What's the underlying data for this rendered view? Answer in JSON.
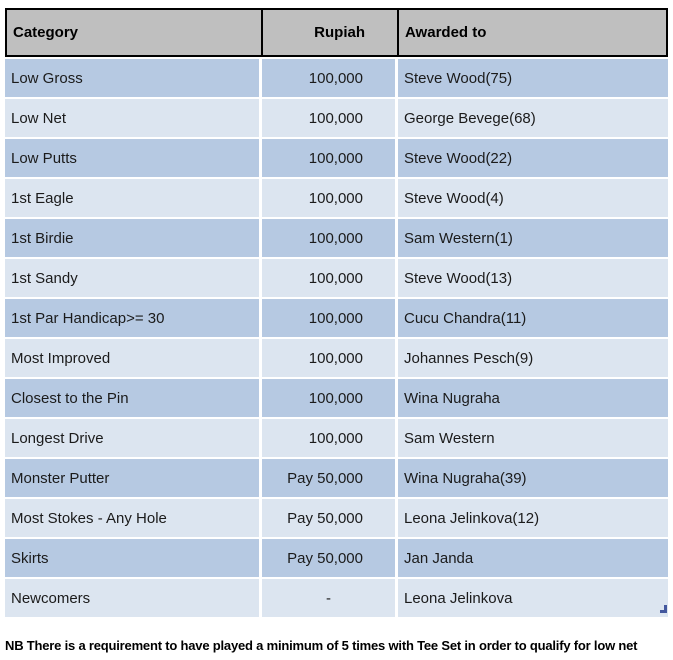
{
  "table": {
    "columns": {
      "category": "Category",
      "rupiah": "Rupiah",
      "awarded_to": "Awarded to"
    },
    "rows": [
      {
        "category": "Low Gross",
        "rupiah": "100,000",
        "awarded_to": "Steve Wood(75)"
      },
      {
        "category": "Low Net",
        "rupiah": "100,000",
        "awarded_to": "George Bevege(68)"
      },
      {
        "category": "Low Putts",
        "rupiah": "100,000",
        "awarded_to": "Steve Wood(22)"
      },
      {
        "category": "1st Eagle",
        "rupiah": "100,000",
        "awarded_to": "Steve Wood(4)"
      },
      {
        "category": "1st Birdie",
        "rupiah": "100,000",
        "awarded_to": "Sam Western(1)"
      },
      {
        "category": "1st Sandy",
        "rupiah": "100,000",
        "awarded_to": "Steve Wood(13)"
      },
      {
        "category": "1st Par Handicap>= 30",
        "rupiah": "100,000",
        "awarded_to": "Cucu Chandra(11)"
      },
      {
        "category": "Most Improved",
        "rupiah": "100,000",
        "awarded_to": "Johannes Pesch(9)"
      },
      {
        "category": "Closest to the Pin",
        "rupiah": "100,000",
        "awarded_to": "Wina Nugraha"
      },
      {
        "category": "Longest Drive",
        "rupiah": "100,000",
        "awarded_to": "Sam Western"
      },
      {
        "category": "Monster Putter",
        "rupiah": "Pay 50,000",
        "awarded_to": "Wina Nugraha(39)"
      },
      {
        "category": "Most Stokes - Any Hole",
        "rupiah": "Pay 50,000",
        "awarded_to": "Leona Jelinkova(12)"
      },
      {
        "category": "Skirts",
        "rupiah": "Pay 50,000",
        "awarded_to": "Jan Janda"
      },
      {
        "category": "Newcomers",
        "rupiah": "-",
        "awarded_to": "Leona Jelinkova"
      }
    ],
    "colors": {
      "header_bg": "#BFBFBF",
      "row_dark": "#B6C9E2",
      "row_light": "#DCE5F0",
      "handle": "#44589E"
    }
  },
  "note": "NB There is a requirement to have played a minimum of 5 times with Tee Set in order to qualify for low net"
}
